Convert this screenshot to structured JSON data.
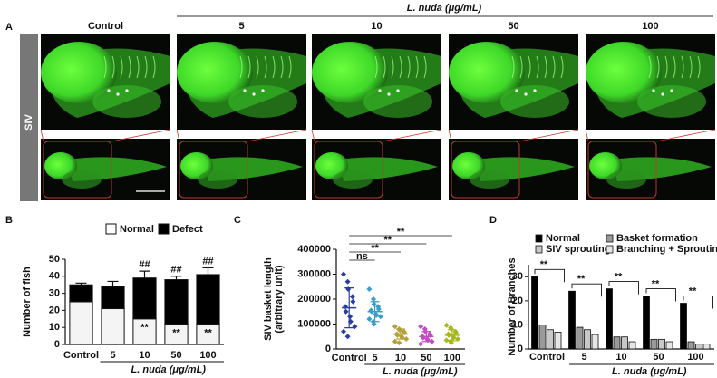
{
  "figure": {
    "panel_a": {
      "panel": "A",
      "group_label": "L. nuda (μg/mL)",
      "columns": [
        "Control",
        "5",
        "10",
        "50",
        "100"
      ],
      "row_label": "SIV"
    }
  },
  "chart_data": [
    {
      "type": "stacked_bar",
      "panel": "B",
      "ylabel": "Number of fish",
      "xlabel": "L. nuda (μg/mL)",
      "categories": [
        "Control",
        "5",
        "10",
        "50",
        "100"
      ],
      "ylim": [
        0,
        50
      ],
      "yticks": [
        0,
        10,
        20,
        30,
        40,
        50
      ],
      "legend": "top",
      "series": [
        {
          "name": "Normal",
          "color": "#f4f4f4",
          "values": [
            25,
            21,
            15,
            12,
            12
          ],
          "errors": [
            1,
            2,
            1,
            1,
            1
          ],
          "annotations": [
            null,
            null,
            "**",
            "**",
            "**"
          ]
        },
        {
          "name": "Defect",
          "color": "#000000",
          "values": [
            10,
            13,
            24,
            26,
            29
          ],
          "errors": [
            1,
            3,
            4,
            2,
            4
          ],
          "annotations": [
            null,
            null,
            "##",
            "##",
            "##"
          ]
        }
      ]
    },
    {
      "type": "dot",
      "panel": "C",
      "ylabel": [
        "SIV basket length",
        "(arbitrary unit)"
      ],
      "xlabel": "L. nuda (μg/mL)",
      "categories": [
        "Control",
        "5",
        "10",
        "50",
        "100"
      ],
      "ylim": [
        0,
        400000
      ],
      "yticks": [
        0,
        100000,
        200000,
        300000,
        400000
      ],
      "groups": [
        {
          "color": "#2b3f9e",
          "values": [
            300000,
            270000,
            240000,
            210000,
            190000,
            170000,
            150000,
            130000,
            110000,
            90000,
            70000,
            50000
          ],
          "mean": 165000,
          "sd": 80000
        },
        {
          "color": "#3a9fc6",
          "values": [
            240000,
            200000,
            180000,
            170000,
            160000,
            155000,
            150000,
            140000,
            135000,
            130000,
            120000,
            110000,
            100000
          ],
          "mean": 150000,
          "sd": 40000
        },
        {
          "color": "#b3a23c",
          "values": [
            90000,
            80000,
            75000,
            70000,
            65000,
            60000,
            55000,
            50000,
            45000,
            40000,
            30000,
            25000
          ],
          "mean": 60000,
          "sd": 20000
        },
        {
          "color": "#c24cc2",
          "values": [
            90000,
            80000,
            70000,
            60000,
            55000,
            50000,
            45000,
            40000,
            35000,
            30000,
            20000
          ],
          "mean": 50000,
          "sd": 20000
        },
        {
          "color": "#a6b81e",
          "values": [
            95000,
            85000,
            80000,
            70000,
            65000,
            60000,
            55000,
            50000,
            45000,
            40000,
            35000,
            30000,
            25000
          ],
          "mean": 55000,
          "sd": 22000
        }
      ],
      "comparisons": [
        {
          "from": "Control",
          "to": "5",
          "label": "ns"
        },
        {
          "from": "Control",
          "to": "10",
          "label": "**"
        },
        {
          "from": "Control",
          "to": "50",
          "label": "**"
        },
        {
          "from": "Control",
          "to": "100",
          "label": "**"
        }
      ]
    },
    {
      "type": "grouped_bar",
      "panel": "D",
      "ylabel": "Number of Branches",
      "xlabel": "L. nuda (μg/mL)",
      "categories": [
        "Control",
        "5",
        "10",
        "50",
        "100"
      ],
      "ylim": [
        0,
        35
      ],
      "yticks": [
        0,
        10,
        20,
        30
      ],
      "legend": "top",
      "series": [
        {
          "name": "Normal",
          "color": "#000000",
          "values": [
            30,
            24,
            25,
            22,
            19
          ],
          "annotations": [
            "**",
            "**",
            "**",
            "**",
            "**"
          ]
        },
        {
          "name": "Basket formation",
          "color": "#9a9a9a",
          "values": [
            10,
            9,
            5,
            4,
            3
          ]
        },
        {
          "name": "SIV sprouting",
          "color": "#c8c8c8",
          "values": [
            8,
            8,
            5,
            4,
            2
          ]
        },
        {
          "name": "Branching + Sprouting",
          "color": "#e6e6e6",
          "values": [
            7,
            6,
            3,
            3,
            2
          ]
        }
      ]
    }
  ]
}
